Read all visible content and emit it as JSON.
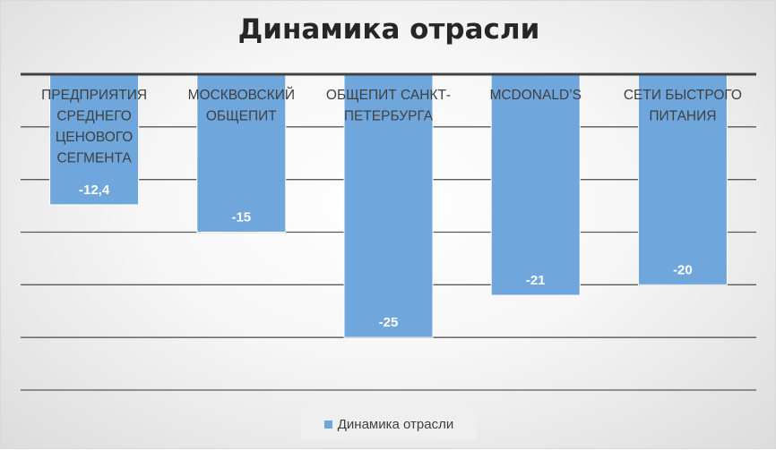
{
  "chart_data": {
    "type": "bar",
    "title": "Динамика отрасли",
    "categories": [
      [
        "ПРЕДПРИЯТИЯ",
        "СРЕДНЕГО",
        "ЦЕНОВОГО",
        "СЕГМЕНТА"
      ],
      [
        "МОСКВОВСКИЙ",
        "ОБЩЕПИТ"
      ],
      [
        "ОБЩЕПИТ САНКТ-",
        "ПЕТЕРБУРГА"
      ],
      [
        "MCDONALD’S"
      ],
      [
        "СЕТИ БЫСТРОГО",
        "ПИТАНИЯ"
      ]
    ],
    "series": [
      {
        "name": "Динамика отрасли",
        "values": [
          -12.4,
          -15,
          -25,
          -21,
          -20
        ],
        "value_labels": [
          "-12,4",
          "-15",
          "-25",
          "-21",
          "-20"
        ]
      }
    ],
    "ylim": [
      -30,
      0
    ],
    "grid": true,
    "legend_position": "bottom",
    "colors": {
      "bar": "#6fa7dc",
      "bar_edge": "#ffffff",
      "axis": "#404040",
      "grid": "#595959"
    }
  }
}
